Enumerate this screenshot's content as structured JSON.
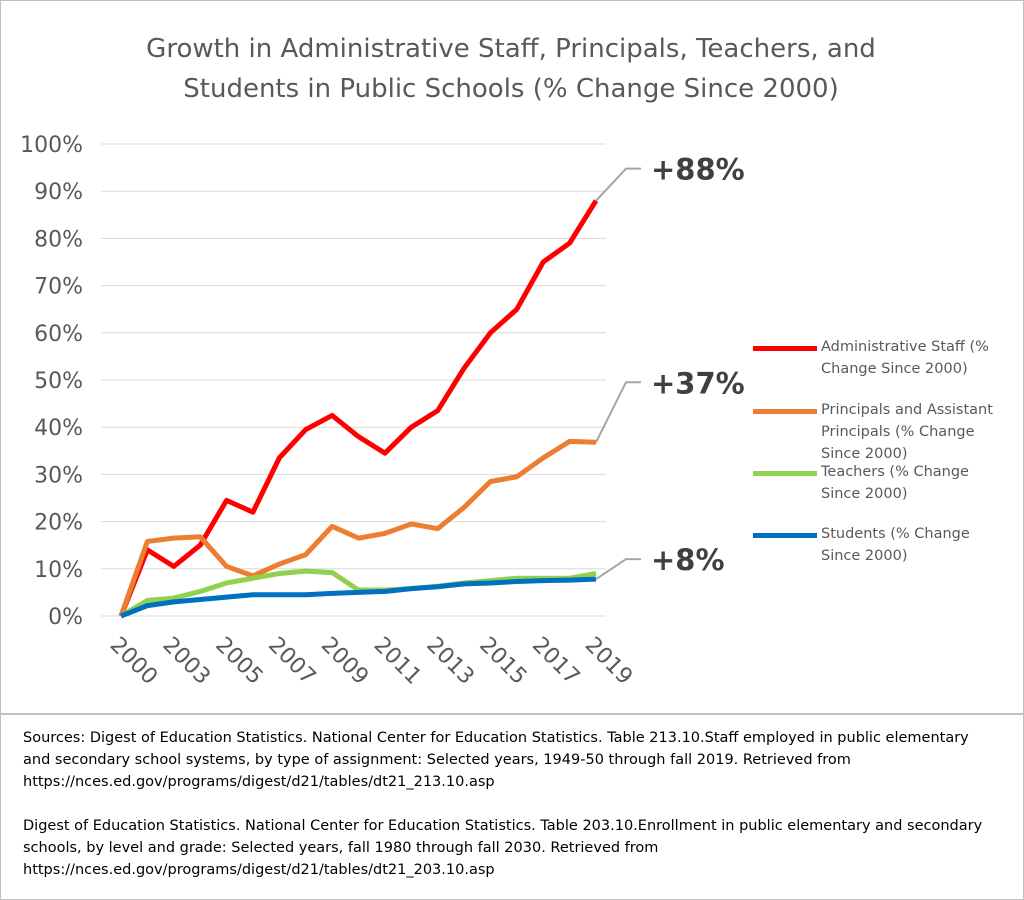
{
  "chart_data": {
    "type": "line",
    "title": "Growth in Administrative Staff, Principals, Teachers, and Students in Public Schools (% Change Since 2000)",
    "categories": [
      "2000",
      null,
      "2003",
      null,
      "2005",
      null,
      "2007",
      null,
      "2009",
      null,
      "2011",
      null,
      "2013",
      null,
      "2015",
      null,
      "2017",
      null,
      "2019"
    ],
    "series": [
      {
        "name": "Administrative Staff (% Change Since 2000)",
        "color": "#ff0000",
        "annotation": "+88%",
        "values": [
          0,
          14,
          10.5,
          15,
          24.5,
          22,
          33.5,
          39.5,
          42.5,
          38,
          34.5,
          40,
          43.5,
          52.5,
          60,
          65,
          75,
          79,
          88
        ]
      },
      {
        "name": "Principals and Assistant Principals (% Change Since 2000)",
        "color": "#ed7d31",
        "annotation": "+37%",
        "values": [
          0,
          15.8,
          16.5,
          16.8,
          10.5,
          8.5,
          11,
          13,
          19,
          16.5,
          17.5,
          19.5,
          18.5,
          23,
          28.5,
          29.5,
          33.5,
          37,
          36.8
        ]
      },
      {
        "name": "Teachers (% Change Since 2000)",
        "color": "#92d050",
        "values": [
          0,
          3.3,
          3.8,
          5.2,
          7,
          8,
          9,
          9.5,
          9.2,
          5.5,
          5.5,
          5.8,
          6.3,
          7,
          7.5,
          8,
          8,
          8,
          9
        ]
      },
      {
        "name": "Students (% Change Since 2000)",
        "color": "#0070c0",
        "annotation": "+8%",
        "values": [
          0,
          2.2,
          3,
          3.5,
          4,
          4.5,
          4.5,
          4.5,
          4.8,
          5,
          5.2,
          5.8,
          6.2,
          6.8,
          7,
          7.3,
          7.5,
          7.6,
          7.8
        ]
      }
    ],
    "ylim": [
      0,
      100
    ],
    "yticks": [
      {
        "value": 0,
        "label": "0%"
      },
      {
        "value": 10,
        "label": "10%"
      },
      {
        "value": 20,
        "label": "20%"
      },
      {
        "value": 30,
        "label": "30%"
      },
      {
        "value": 40,
        "label": "40%"
      },
      {
        "value": 50,
        "label": "50%"
      },
      {
        "value": 60,
        "label": "60%"
      },
      {
        "value": 70,
        "label": "70%"
      },
      {
        "value": 80,
        "label": "80%"
      },
      {
        "value": 90,
        "label": "90%"
      },
      {
        "value": 100,
        "label": "100%"
      }
    ],
    "grid": true,
    "legend": "right"
  },
  "footer": {
    "paragraphs": [
      "Sources: Digest of Education Statistics. National Center for Education Statistics. Table 213.10.Staff employed in public elementary and secondary school systems, by type of assignment: Selected years, 1949-50 through fall 2019. Retrieved from https://nces.ed.gov/programs/digest/d21/tables/dt21_213.10.asp",
      "Digest of Education Statistics. National Center for Education Statistics. Table 203.10.Enrollment in public elementary and secondary schools, by level and grade: Selected years, fall 1980 through fall 2030. Retrieved from https://nces.ed.gov/programs/digest/d21/tables/dt21_203.10.asp"
    ]
  }
}
